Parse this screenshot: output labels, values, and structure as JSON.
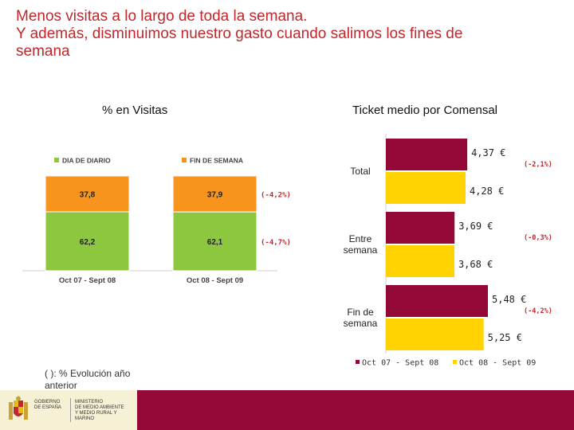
{
  "title": {
    "line1": "Menos visitas a lo largo de toda la semana.",
    "line2": "Y además, disminuimos nuestro gasto cuando salimos los fines de",
    "line3": "semana"
  },
  "colors": {
    "title": "#c0272d",
    "dia_de_diario": "#8dc63f",
    "fin_de_semana": "#f7941d",
    "period1": "#930836",
    "period2": "#ffd200",
    "evolution_label": "#c0272d",
    "footer_bar": "#930836"
  },
  "left_panel": {
    "heading": "% en Visitas"
  },
  "right_panel": {
    "heading": "Ticket medio por Comensal"
  },
  "note": "( ): % Evolución año anterior",
  "footer": {
    "gov_text": "GOBIERNO\nDE ESPAÑA",
    "ministry_text": "MINISTERIO\nDE MEDIO AMBIENTE\nY MEDIO RURAL Y MARINO"
  },
  "chart_data": [
    {
      "type": "bar",
      "stacked": true,
      "percent": true,
      "categories": [
        "Oct 07 - Sept 08",
        "Oct 08 - Sept 09"
      ],
      "series": [
        {
          "name": "DIA DE DIARIO",
          "values": [
            62.2,
            62.1
          ],
          "labels": [
            "62,2",
            "62,1"
          ]
        },
        {
          "name": "FIN DE SEMANA",
          "values": [
            37.8,
            37.9
          ],
          "labels": [
            "37,8",
            "37,9"
          ]
        }
      ],
      "legend_position": "top",
      "evolution_labels": [
        {
          "series": "FIN DE SEMANA",
          "text": "(-4,2%)"
        },
        {
          "series": "DIA DE DIARIO",
          "text": "(-4,7%)"
        }
      ]
    },
    {
      "type": "bar",
      "orientation": "horizontal",
      "categories": [
        "Total",
        "Entre\nsemana",
        "Fin de\nsemana"
      ],
      "series": [
        {
          "name": "Oct 07 - Sept 08",
          "values": [
            4.37,
            3.69,
            5.48
          ],
          "labels": [
            "4,37 €",
            "3,69 €",
            "5,48 €"
          ]
        },
        {
          "name": "Oct 08 - Sept 09",
          "values": [
            4.28,
            3.68,
            5.25
          ],
          "labels": [
            "4,28 €",
            "3,68 €",
            "5,25 €"
          ]
        }
      ],
      "evolution_labels": [
        "(-2,1%)",
        "(-0,3%)",
        "(-4,2%)"
      ],
      "legend_position": "bottom"
    }
  ]
}
